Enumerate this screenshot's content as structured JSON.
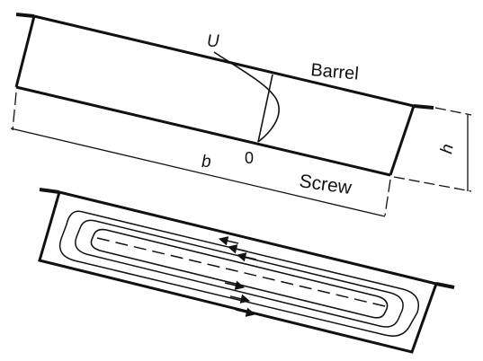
{
  "colors": {
    "ink": "#111111",
    "background": "#ffffff"
  },
  "upper": {
    "velocity_label": "U",
    "barrel_label": "Barrel",
    "origin_label": "0",
    "screw_label": "Screw",
    "width_label": "b",
    "height_label": "h"
  },
  "lower": {
    "arrow_marker": "arrowhead-icon"
  }
}
